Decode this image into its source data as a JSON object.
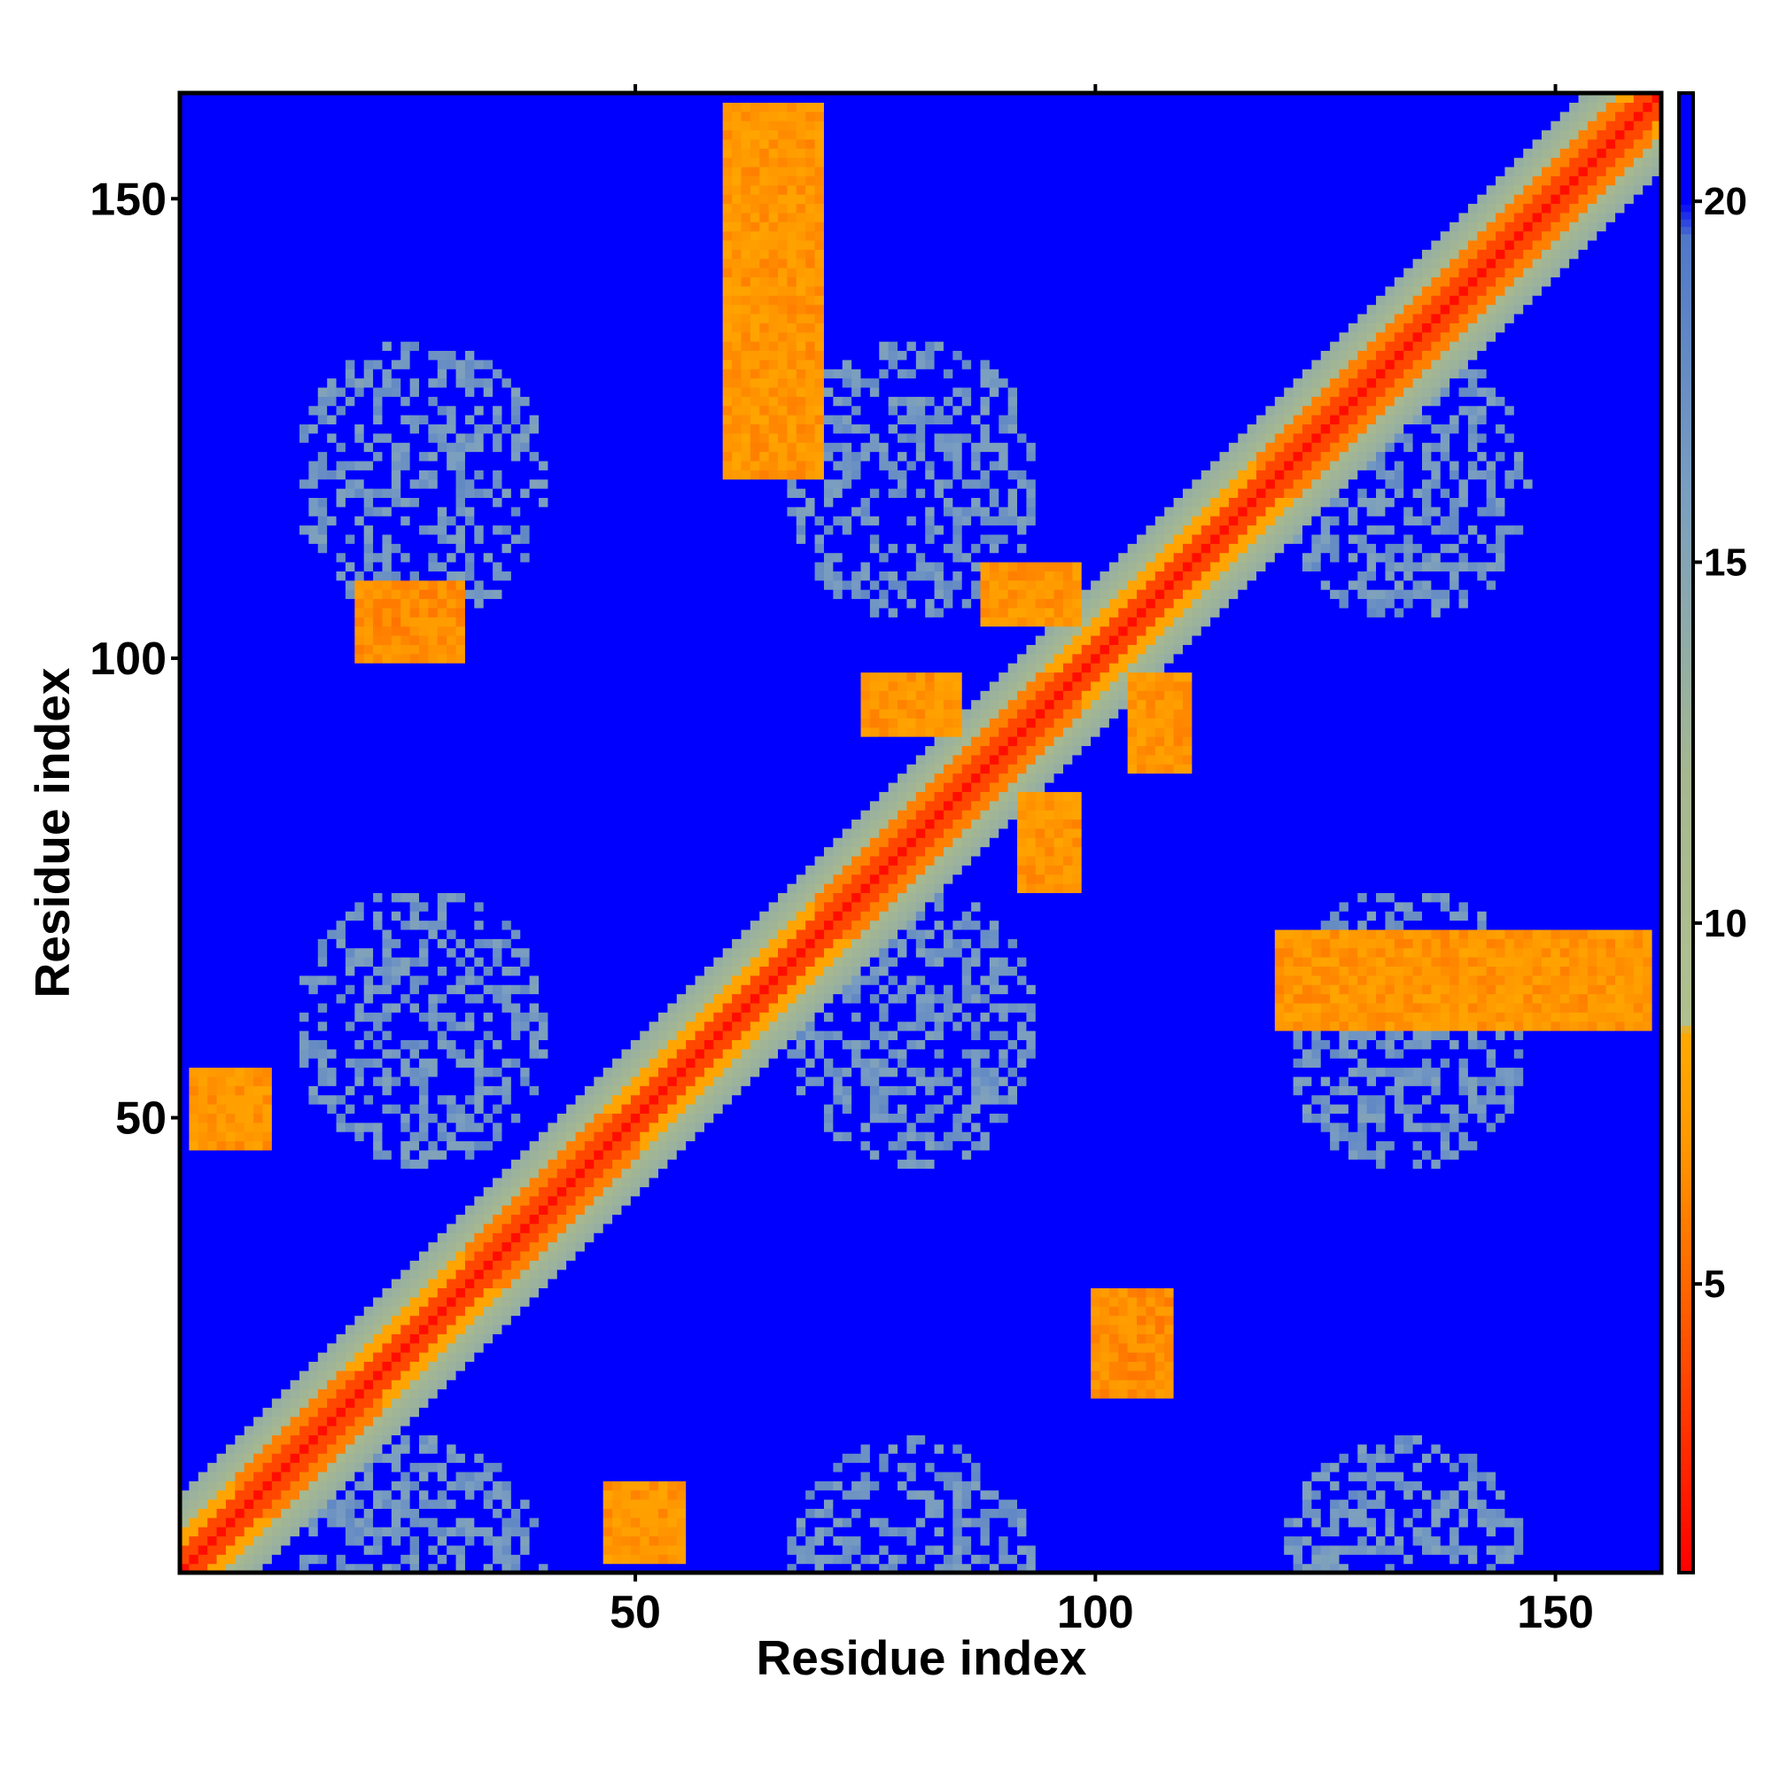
{
  "chart_data": {
    "type": "heatmap",
    "title": "",
    "xlabel": "Residue index",
    "ylabel": "Residue index",
    "xlim": [
      1,
      161
    ],
    "ylim": [
      1,
      161
    ],
    "x_ticks": [
      50,
      100,
      150
    ],
    "x_tick_labels": [
      "50",
      "100",
      "150"
    ],
    "y_ticks": [
      50,
      100,
      150
    ],
    "y_tick_labels": [
      "50",
      "100",
      "150"
    ],
    "colorbar": {
      "range": [
        1,
        21.5
      ],
      "ticks": [
        5,
        10,
        15,
        20
      ],
      "tick_labels": [
        "5",
        "10",
        "15",
        "20"
      ],
      "colors": [
        {
          "value": 1,
          "color": "#ff0000"
        },
        {
          "value": 3,
          "color": "#ff3300"
        },
        {
          "value": 5,
          "color": "#ff6600"
        },
        {
          "value": 7,
          "color": "#ff9900"
        },
        {
          "value": 8.5,
          "color": "#ffaa00"
        },
        {
          "value": 8.6,
          "color": "#b0c090"
        },
        {
          "value": 12,
          "color": "#a6b890"
        },
        {
          "value": 16,
          "color": "#7a9ec0"
        },
        {
          "value": 19.5,
          "color": "#5078c8"
        },
        {
          "value": 20,
          "color": "#0000ff"
        }
      ]
    },
    "contacts": {
      "main_diagonal": {
        "min_distance": 3.8
      },
      "helices": [
        [
          7,
          22
        ],
        [
          32,
          50
        ],
        [
          70,
          98
        ],
        [
          118,
          160
        ]
      ],
      "cross_contacts": [
        {
          "i_range": [
            20,
            31
          ],
          "j_range": [
            100,
            108
          ],
          "d": 5.5
        },
        {
          "i_range": [
            47,
            55
          ],
          "j_range": [
            2,
            10
          ],
          "d": 6
        },
        {
          "i_range": [
            60,
            70
          ],
          "j_range": [
            120,
            160
          ],
          "d": 6
        },
        {
          "i_range": [
            92,
            98
          ],
          "j_range": [
            75,
            85
          ],
          "d": 6
        },
        {
          "i_range": [
            104,
            110
          ],
          "j_range": [
            88,
            98
          ],
          "d": 6
        }
      ]
    }
  }
}
